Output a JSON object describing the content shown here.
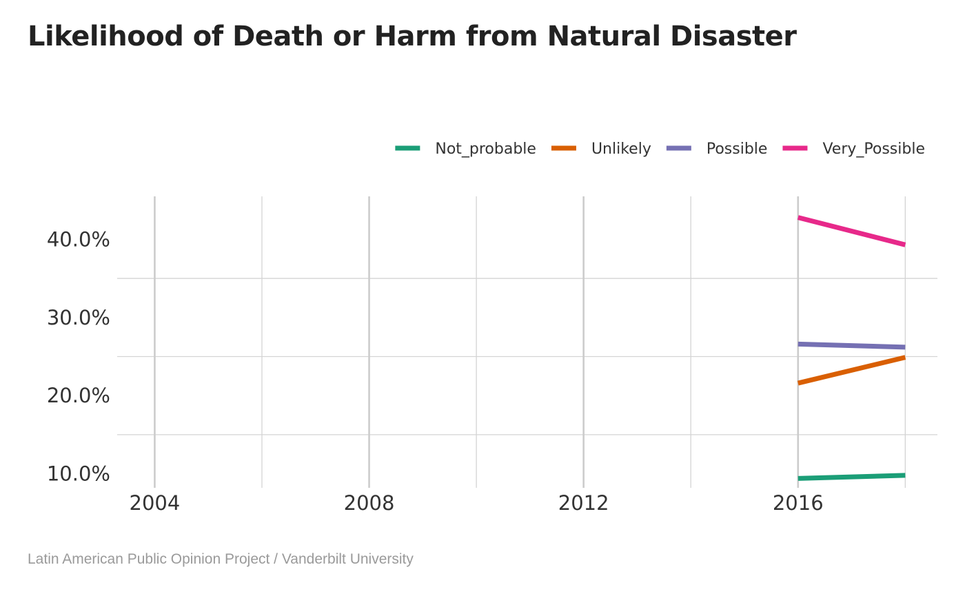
{
  "chart_data": {
    "type": "line",
    "title": "Likelihood of Death or Harm from Natural Disaster",
    "xlabel": "",
    "ylabel": "",
    "x": [
      2016,
      2018
    ],
    "xlim": [
      2003.3,
      2018.6
    ],
    "ylim": [
      8.2,
      45.5
    ],
    "x_ticks": [
      2004,
      2008,
      2012,
      2016
    ],
    "x_tick_labels": [
      "2004",
      "2008",
      "2012",
      "2016"
    ],
    "x_minor_ticks": [
      2006,
      2010,
      2014,
      2018
    ],
    "y_ticks": [
      10,
      20,
      30,
      40
    ],
    "y_tick_labels": [
      "10.0%",
      "20.0%",
      "30.0%",
      "40.0%"
    ],
    "y_minor_ticks": [
      15,
      25,
      35
    ],
    "grid": true,
    "legend_position": "top-right",
    "series": [
      {
        "name": "Not_probable",
        "color": "#1b9e77",
        "values": [
          9.4,
          9.8
        ]
      },
      {
        "name": "Unlikely",
        "color": "#d95f02",
        "values": [
          21.6,
          24.9
        ]
      },
      {
        "name": "Possible",
        "color": "#7570b3",
        "values": [
          26.6,
          26.2
        ]
      },
      {
        "name": "Very_Possible",
        "color": "#e7298a",
        "values": [
          42.8,
          39.3
        ]
      }
    ]
  },
  "caption": "Latin American Public Opinion Project / Vanderbilt University"
}
